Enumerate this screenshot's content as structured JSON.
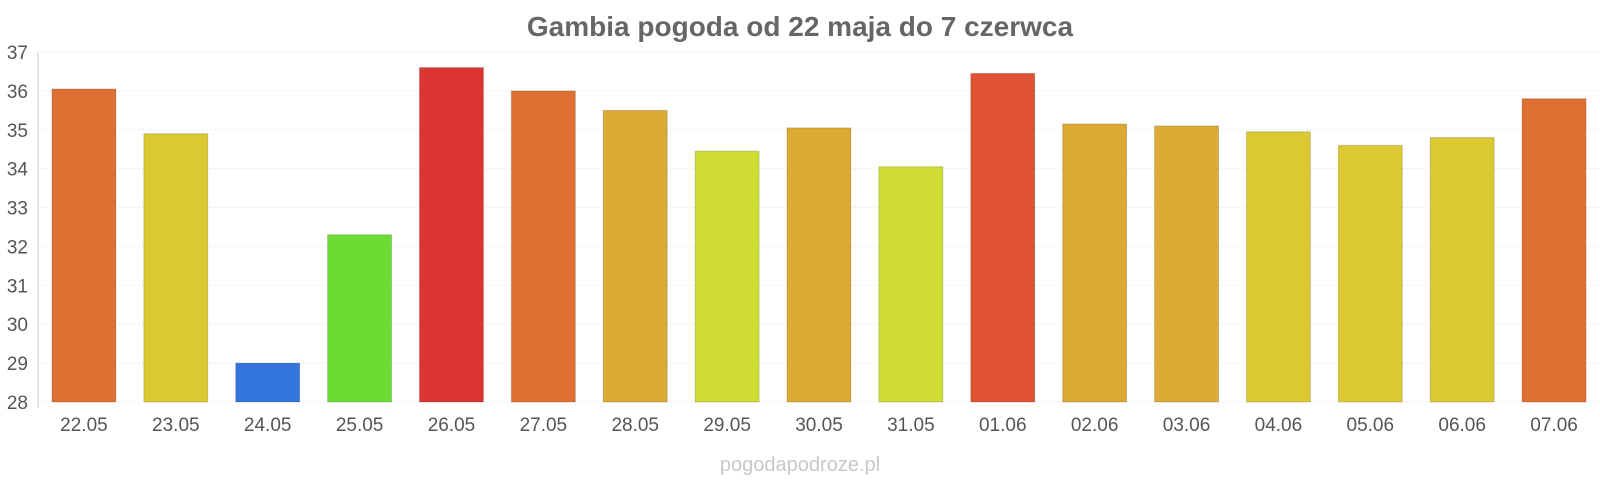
{
  "chart_data": {
    "type": "bar",
    "title": "Gambia pogoda od 22 maja do 7 czerwca",
    "xlabel": "",
    "ylabel": "",
    "ylim": [
      28,
      37
    ],
    "yticks": [
      28,
      29,
      30,
      31,
      32,
      33,
      34,
      35,
      36,
      37
    ],
    "grid": true,
    "legend": "none",
    "categories": [
      "22.05",
      "23.05",
      "24.05",
      "25.05",
      "26.05",
      "27.05",
      "28.05",
      "29.05",
      "30.05",
      "31.05",
      "01.06",
      "02.06",
      "03.06",
      "04.06",
      "05.06",
      "06.06",
      "07.06"
    ],
    "values": [
      36.05,
      34.9,
      29.0,
      32.3,
      36.6,
      36.0,
      35.5,
      34.45,
      35.05,
      34.05,
      36.45,
      35.15,
      35.1,
      34.95,
      34.6,
      34.8,
      35.8
    ],
    "colors": [
      "#de7033",
      "#dcc833",
      "#3375dc",
      "#6bdc33",
      "#dc3433",
      "#de7033",
      "#dca933",
      "#cedc33",
      "#dca933",
      "#cedc33",
      "#de5133",
      "#dca933",
      "#dca933",
      "#dcc833",
      "#dcc833",
      "#dcc833",
      "#de7033"
    ]
  },
  "watermark": "pogodapodroze.pl"
}
